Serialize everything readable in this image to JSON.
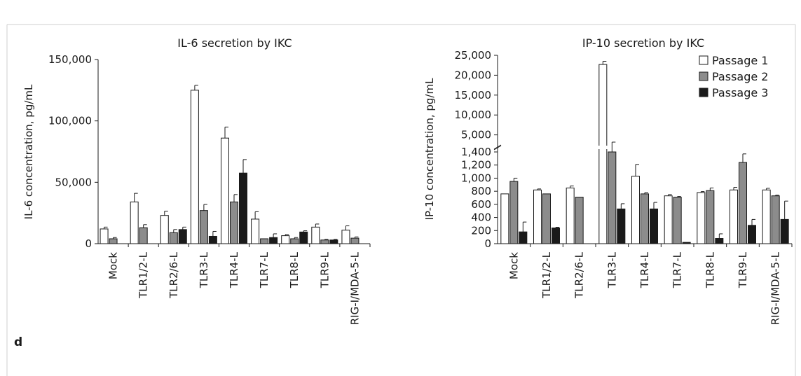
{
  "panel_label": "d",
  "chart_data": [
    {
      "type": "bar",
      "title": "IL-6 secretion by IKC",
      "xlabel": "",
      "ylabel": "IL-6 concentration, pg/mL",
      "ylim": [
        0,
        150000
      ],
      "yticks": [
        "0",
        "50,000",
        "100,000",
        "150,000"
      ],
      "ytick_values": [
        0,
        50000,
        100000,
        150000
      ],
      "categories": [
        "Mock",
        "TLR1/2-L",
        "TLR2/6-L",
        "TLR3-L",
        "TLR4-L",
        "TLR7-L",
        "TLR8-L",
        "TLR9-L",
        "RIG-I/MDA-5-L"
      ],
      "series": [
        {
          "values": [
            12000,
            34000,
            23000,
            125000,
            86000,
            20000,
            6500,
            13500,
            11000
          ],
          "errors": [
            1500,
            7000,
            3500,
            4000,
            9000,
            6000,
            1000,
            2500,
            3500
          ],
          "color": "#ffffff"
        },
        {
          "values": [
            4000,
            13000,
            9000,
            27000,
            34000,
            4000,
            4000,
            3000,
            4500
          ],
          "errors": [
            1000,
            2500,
            2500,
            5000,
            6000,
            0,
            1000,
            500,
            1000
          ],
          "color": "#8c8c8c"
        },
        {
          "values": [
            0,
            0,
            11500,
            6000,
            57500,
            5000,
            9500,
            3000,
            0
          ],
          "errors": [
            0,
            0,
            2000,
            4000,
            11000,
            3000,
            1000,
            500,
            0
          ],
          "color": "#1a1a1a"
        }
      ],
      "grid": false
    },
    {
      "type": "bar",
      "title": "IP-10 secretion by IKC",
      "xlabel": "",
      "ylabel": "IP-10 concentration, pg/mL",
      "axis_break": true,
      "ylim_lower": [
        0,
        1400
      ],
      "yticks_lower": [
        "0",
        "200",
        "400",
        "600",
        "800",
        "1,000",
        "1,200",
        "1,400"
      ],
      "ytick_values_lower": [
        0,
        200,
        400,
        600,
        800,
        1000,
        1200,
        1400
      ],
      "ylim_upper": [
        3000,
        25000
      ],
      "yticks_upper": [
        "5,000",
        "10,000",
        "15,000",
        "20,000",
        "25,000"
      ],
      "ytick_values_upper": [
        5000,
        10000,
        15000,
        20000,
        25000
      ],
      "categories": [
        "Mock",
        "TLR1/2-L",
        "TLR2/6-L",
        "TLR3-L",
        "TLR4-L",
        "TLR7-L",
        "TLR8-L",
        "TLR9-L",
        "RIG-I/MDA-5-L"
      ],
      "series": [
        {
          "name": "Passage 1",
          "values": [
            760,
            820,
            850,
            22700,
            1030,
            730,
            780,
            820,
            820
          ],
          "errors": [
            0,
            15,
            30,
            800,
            180,
            20,
            15,
            40,
            25
          ],
          "color": "#ffffff"
        },
        {
          "name": "Passage 2",
          "values": [
            950,
            760,
            710,
            1580,
            760,
            710,
            810,
            1240,
            730
          ],
          "errors": [
            50,
            0,
            0,
            1600,
            20,
            10,
            40,
            130,
            10
          ],
          "color": "#8c8c8c"
        },
        {
          "name": "Passage 3",
          "values": [
            180,
            240,
            0,
            530,
            530,
            20,
            80,
            280,
            370
          ],
          "errors": [
            150,
            10,
            0,
            80,
            100,
            0,
            70,
            90,
            280
          ],
          "color": "#1a1a1a"
        }
      ],
      "legend_position": "top-right",
      "grid": false
    }
  ]
}
